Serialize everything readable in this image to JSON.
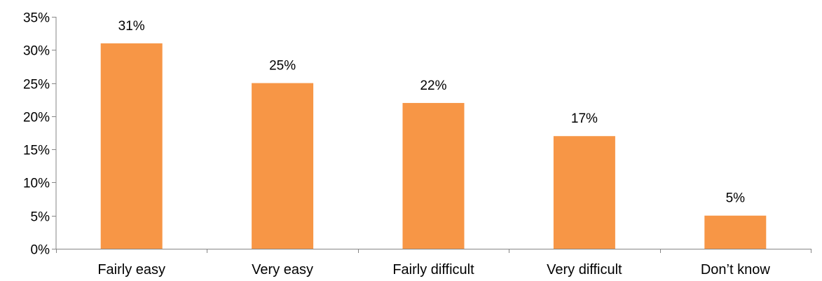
{
  "chart_data": {
    "type": "bar",
    "categories": [
      "Fairly easy",
      "Very easy",
      "Fairly difficult",
      "Very difficult",
      "Don’t know"
    ],
    "values": [
      31,
      25,
      22,
      17,
      5
    ],
    "data_labels": [
      "31%",
      "25%",
      "22%",
      "17%",
      "5%"
    ],
    "title": "",
    "xlabel": "",
    "ylabel": "",
    "ylim": [
      0,
      35
    ],
    "y_ticks": [
      0,
      5,
      10,
      15,
      20,
      25,
      30,
      35
    ],
    "y_tick_labels": [
      "0%",
      "5%",
      "10%",
      "15%",
      "20%",
      "25%",
      "30%",
      "35%"
    ],
    "bar_color": "#F79646",
    "axis_color": "#868686",
    "grid": false,
    "legend": "none"
  }
}
